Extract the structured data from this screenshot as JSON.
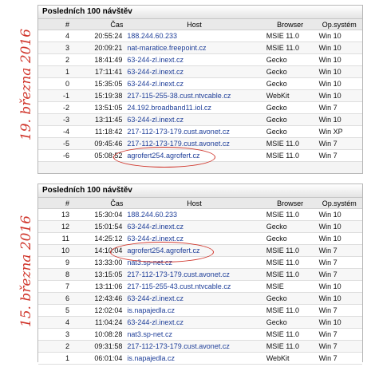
{
  "annotations": {
    "date_1": "19. března 2016",
    "date_2": "15. března 2016",
    "color": "#d0352b"
  },
  "tables": [
    {
      "title": "Posledních 100 návštěv",
      "headers": [
        "#",
        "Čas",
        "Host",
        "Browser",
        "Op.systém"
      ],
      "rows": [
        [
          "4",
          "20:55:24",
          "188.244.60.233",
          "MSIE 11.0",
          "Win 10"
        ],
        [
          "3",
          "20:09:21",
          "nat-maratice.freepoint.cz",
          "MSIE 11.0",
          "Win 10"
        ],
        [
          "2",
          "18:41:49",
          "63-244-zl.inext.cz",
          "Gecko",
          "Win 10"
        ],
        [
          "1",
          "17:11:41",
          "63-244-zl.inext.cz",
          "Gecko",
          "Win 10"
        ],
        [
          "0",
          "15:35:05",
          "63-244-zl.inext.cz",
          "Gecko",
          "Win 10"
        ],
        [
          "-1",
          "15:19:38",
          "217-115-255-38.cust.ntvcable.cz",
          "WebKit",
          "Win 10"
        ],
        [
          "-2",
          "13:51:05",
          "24.192.broadband11.iol.cz",
          "Gecko",
          "Win 7"
        ],
        [
          "-3",
          "13:11:45",
          "63-244-zl.inext.cz",
          "Gecko",
          "Win 10"
        ],
        [
          "-4",
          "11:18:42",
          "217-112-173-179.cust.avonet.cz",
          "Gecko",
          "Win XP"
        ],
        [
          "-5",
          "09:45:46",
          "217-112-173-179.cust.avonet.cz",
          "MSIE 11.0",
          "Win 7"
        ],
        [
          "-6",
          "05:08:52",
          "agrofert254.agrofert.cz",
          "MSIE 11.0",
          "Win 7"
        ]
      ]
    },
    {
      "title": "Posledních 100 návštěv",
      "headers": [
        "#",
        "Čas",
        "Host",
        "Browser",
        "Op.systém"
      ],
      "rows": [
        [
          "13",
          "15:30:04",
          "188.244.60.233",
          "MSIE 11.0",
          "Win 10"
        ],
        [
          "12",
          "15:01:54",
          "63-244-zl.inext.cz",
          "Gecko",
          "Win 10"
        ],
        [
          "11",
          "14:25:12",
          "63-244-zl.inext.cz",
          "Gecko",
          "Win 10"
        ],
        [
          "10",
          "14:10:04",
          "agrofert254.agrofert.cz",
          "MSIE 11.0",
          "Win 7"
        ],
        [
          "9",
          "13:33:00",
          "nat3.sp-net.cz",
          "MSIE 11.0",
          "Win 7"
        ],
        [
          "8",
          "13:15:05",
          "217-112-173-179.cust.avonet.cz",
          "MSIE 11.0",
          "Win 7"
        ],
        [
          "7",
          "13:11:06",
          "217-115-255-43.cust.ntvcable.cz",
          "MSIE",
          "Win 10"
        ],
        [
          "6",
          "12:43:46",
          "63-244-zl.inext.cz",
          "Gecko",
          "Win 10"
        ],
        [
          "5",
          "12:02:04",
          "is.napajedla.cz",
          "MSIE 11.0",
          "Win 7"
        ],
        [
          "4",
          "11:04:24",
          "63-244-zl.inext.cz",
          "Gecko",
          "Win 10"
        ],
        [
          "3",
          "10:08:28",
          "nat3.sp-net.cz",
          "MSIE 11.0",
          "Win 7"
        ],
        [
          "2",
          "09:31:58",
          "217-112-173-179.cust.avonet.cz",
          "MSIE 11.0",
          "Win 7"
        ],
        [
          "1",
          "06:01:04",
          "is.napajedla.cz",
          "WebKit",
          "Win 7"
        ]
      ]
    }
  ]
}
